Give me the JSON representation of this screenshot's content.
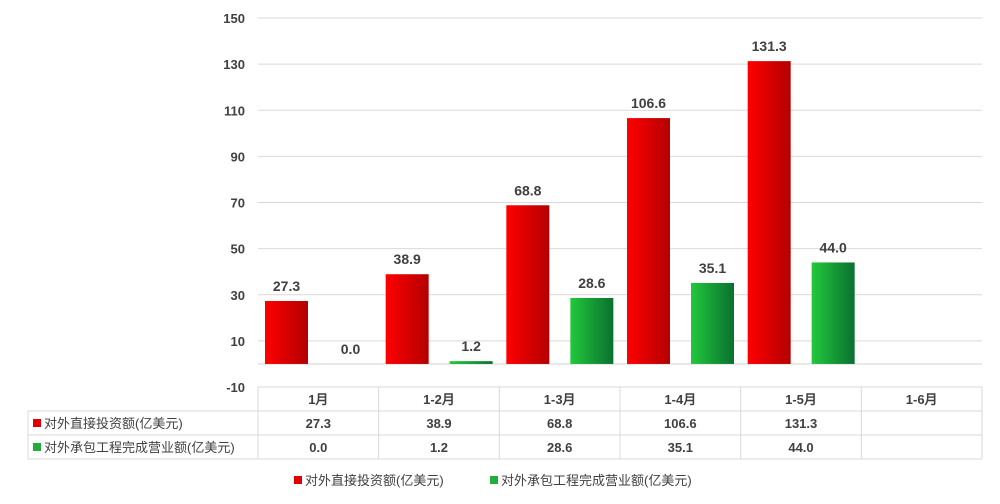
{
  "chart_data": {
    "type": "bar",
    "categories": [
      "1月",
      "1-2月",
      "1-3月",
      "1-4月",
      "1-5月",
      "1-6月"
    ],
    "series": [
      {
        "name": "对外直接投资额(亿美元)",
        "values": [
          27.3,
          38.9,
          68.8,
          106.6,
          131.3,
          null
        ],
        "labels": [
          "27.3",
          "38.9",
          "68.8",
          "106.6",
          "131.3",
          ""
        ],
        "color": "#e00000"
      },
      {
        "name": "对外承包工程完成营业额(亿美元)",
        "values": [
          0.0,
          1.2,
          28.6,
          35.1,
          44.0,
          null
        ],
        "labels": [
          "0.0",
          "1.2",
          "28.6",
          "35.1",
          "44.0",
          ""
        ],
        "color": "#1fae3c"
      }
    ],
    "yticks": [
      "150",
      "130",
      "110",
      "90",
      "70",
      "50",
      "30",
      "10",
      "-10"
    ],
    "ylim": [
      -10,
      150
    ],
    "grid": true,
    "legend": "bottom",
    "data_table": true
  }
}
